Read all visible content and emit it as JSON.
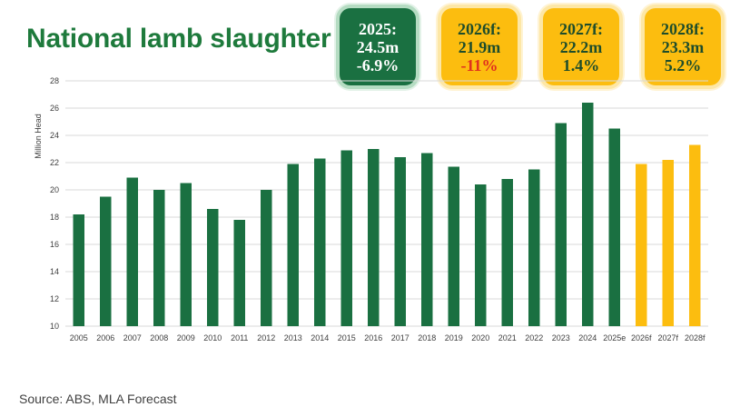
{
  "title": "National lamb slaughter",
  "cards": [
    {
      "period": "2025:",
      "value": "24.5m",
      "change": "-6.9%",
      "style": "actual",
      "negative": false
    },
    {
      "period": "2026f:",
      "value": "21.9m",
      "change": "-11%",
      "style": "forecast",
      "negative": true
    },
    {
      "period": "2027f:",
      "value": "22.2m",
      "change": "1.4%",
      "style": "forecast",
      "negative": false
    },
    {
      "period": "2028f:",
      "value": "23.3m",
      "change": "5.2%",
      "style": "forecast",
      "negative": false
    }
  ],
  "colors": {
    "actual": "#1a7041",
    "forecast": "#fcbd0f",
    "negative_change": "#e0321e",
    "title": "#1e7a3c",
    "gridline": "#d9d9d9",
    "axis_text": "#404040"
  },
  "chart_data": {
    "type": "bar",
    "title": "National lamb slaughter",
    "xlabel": "",
    "ylabel": "Million Head",
    "ylim": [
      10,
      28
    ],
    "yticks": [
      10,
      12,
      14,
      16,
      18,
      20,
      22,
      24,
      26,
      28
    ],
    "grid": true,
    "categories": [
      "2005",
      "2006",
      "2007",
      "2008",
      "2009",
      "2010",
      "2011",
      "2012",
      "2013",
      "2014",
      "2015",
      "2016",
      "2017",
      "2018",
      "2019",
      "2020",
      "2021",
      "2022",
      "2023",
      "2024",
      "2025e",
      "2026f",
      "2027f",
      "2028f"
    ],
    "values": [
      18.2,
      19.5,
      20.9,
      20.0,
      20.5,
      18.6,
      17.8,
      20.0,
      21.9,
      22.3,
      22.9,
      23.0,
      22.4,
      22.7,
      21.7,
      20.4,
      20.8,
      21.5,
      24.9,
      26.4,
      24.5,
      21.9,
      22.2,
      23.3
    ],
    "series_type": [
      "actual",
      "actual",
      "actual",
      "actual",
      "actual",
      "actual",
      "actual",
      "actual",
      "actual",
      "actual",
      "actual",
      "actual",
      "actual",
      "actual",
      "actual",
      "actual",
      "actual",
      "actual",
      "actual",
      "actual",
      "actual",
      "forecast",
      "forecast",
      "forecast"
    ]
  },
  "source": "Source: ABS, MLA Forecast"
}
